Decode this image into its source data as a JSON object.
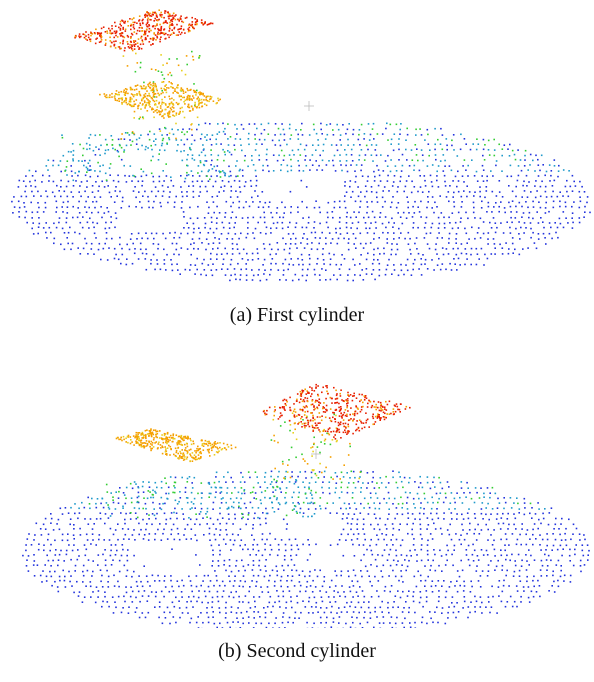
{
  "figures": [
    {
      "caption": "(a) First cylinder",
      "colors": {
        "low": "#2233dd",
        "mid_low": "#1f9acb",
        "mid": "#33cc33",
        "mid_high": "#e8d020",
        "high_orange": "#f5a000",
        "high": "#e82000",
        "marker": "#bbbbbb"
      }
    },
    {
      "caption": "(b) Second cylinder",
      "colors": {
        "low": "#2233dd",
        "mid_low": "#1f9acb",
        "mid": "#33cc33",
        "mid_high": "#e8d020",
        "high_orange": "#f5a000",
        "high": "#e82000",
        "marker": "#bbbbbb"
      }
    }
  ]
}
